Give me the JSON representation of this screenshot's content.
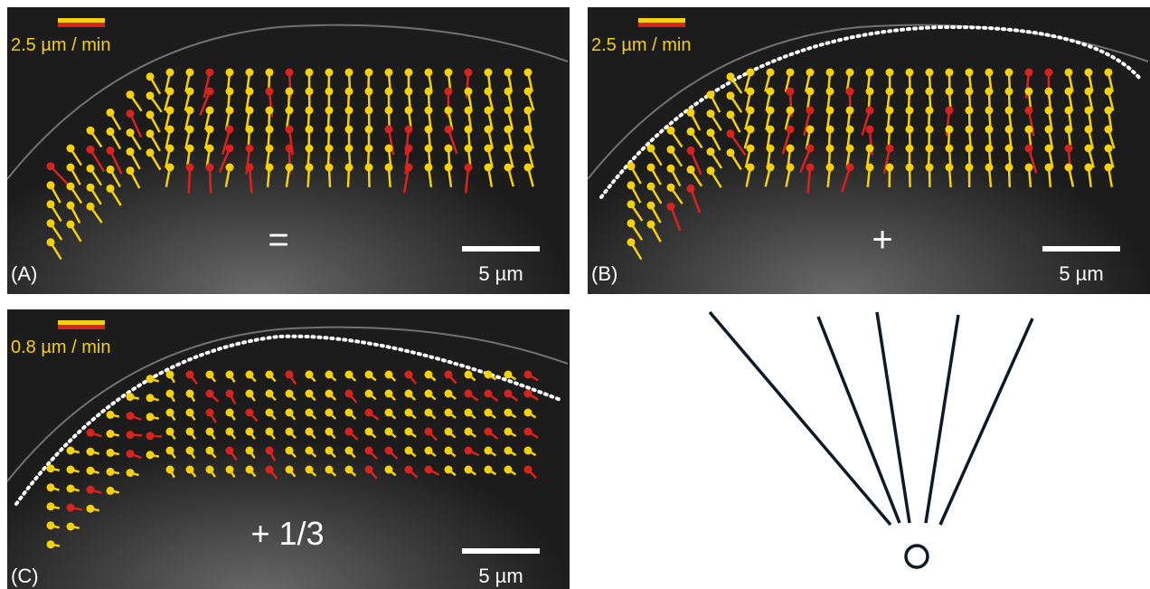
{
  "panels": [
    {
      "label": "(A)",
      "speed": "2.5 µm / min",
      "scale": "5 µm",
      "operator": "="
    },
    {
      "label": "(B)",
      "speed": "2.5 µm / min",
      "scale": "5 µm",
      "operator": "+"
    },
    {
      "label": "(C)",
      "speed": "0.8 µm / min",
      "scale": "5 µm",
      "operator": "+ 1/3"
    }
  ]
}
